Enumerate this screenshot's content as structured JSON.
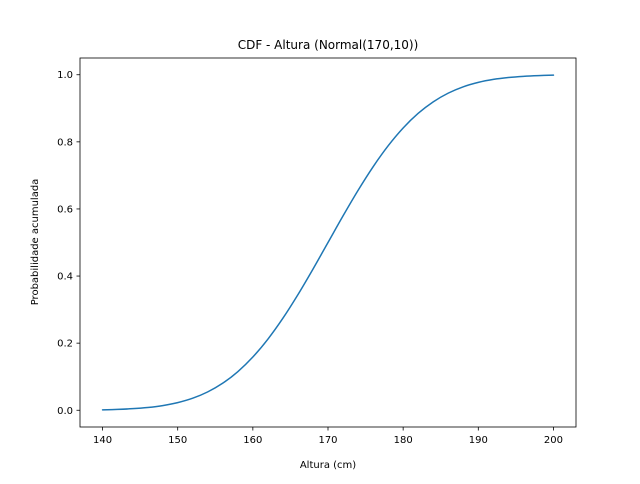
{
  "chart_data": {
    "type": "line",
    "title": "CDF - Altura (Normal(170,10))",
    "xlabel": "Altura (cm)",
    "ylabel": "Probabilidade acumulada",
    "xlim": [
      137,
      203
    ],
    "ylim": [
      -0.0499,
      1.0499
    ],
    "xticks": [
      {
        "value": 140,
        "label": "140"
      },
      {
        "value": 150,
        "label": "150"
      },
      {
        "value": 160,
        "label": "160"
      },
      {
        "value": 170,
        "label": "170"
      },
      {
        "value": 180,
        "label": "180"
      },
      {
        "value": 190,
        "label": "190"
      },
      {
        "value": 200,
        "label": "200"
      }
    ],
    "yticks": [
      {
        "value": 0.0,
        "label": "0.0"
      },
      {
        "value": 0.2,
        "label": "0.2"
      },
      {
        "value": 0.4,
        "label": "0.4"
      },
      {
        "value": 0.6,
        "label": "0.6"
      },
      {
        "value": 0.8,
        "label": "0.8"
      },
      {
        "value": 1.0,
        "label": "1.0"
      }
    ],
    "grid": false,
    "legend": "none",
    "series": [
      {
        "color": "#1f77b4",
        "x": [
          140,
          142,
          144,
          146,
          148,
          150,
          152,
          154,
          156,
          158,
          160,
          162,
          164,
          166,
          168,
          170,
          172,
          174,
          176,
          178,
          180,
          182,
          184,
          186,
          188,
          190,
          192,
          194,
          196,
          198,
          200
        ],
        "y": [
          0.0013,
          0.0026,
          0.0047,
          0.0082,
          0.0139,
          0.0228,
          0.0359,
          0.0548,
          0.0808,
          0.1151,
          0.1587,
          0.2119,
          0.2743,
          0.3446,
          0.4207,
          0.5,
          0.5793,
          0.6554,
          0.7257,
          0.7881,
          0.8413,
          0.8849,
          0.9192,
          0.9452,
          0.9641,
          0.9772,
          0.9861,
          0.9918,
          0.9953,
          0.9974,
          0.9987
        ]
      }
    ]
  }
}
